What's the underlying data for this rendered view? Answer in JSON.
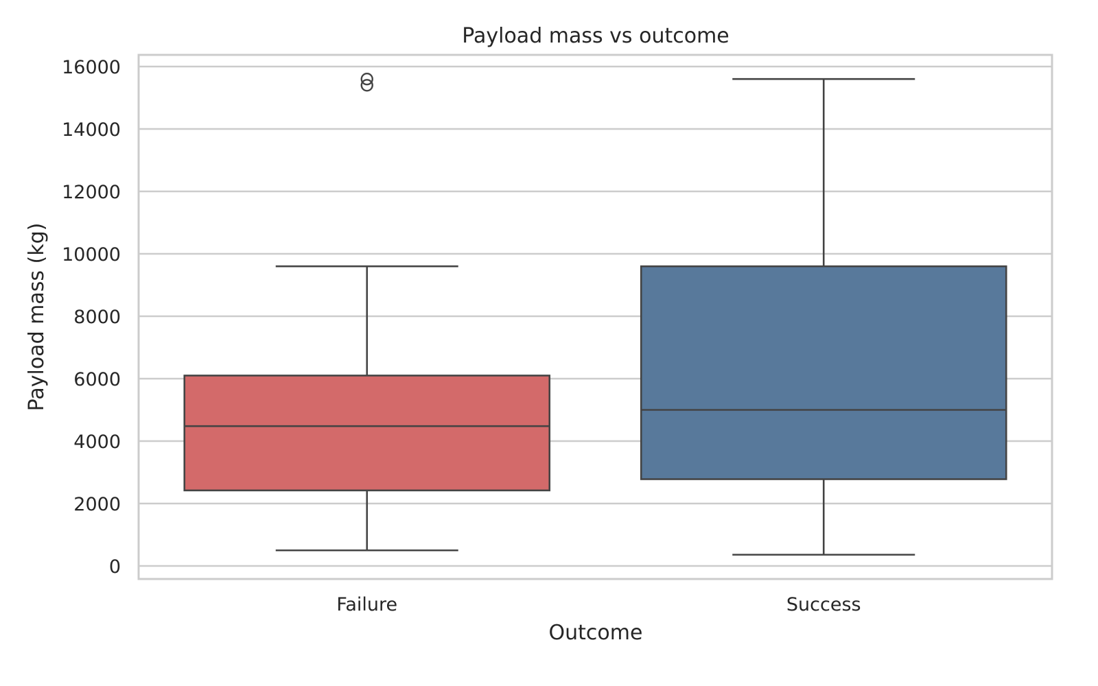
{
  "chart_data": {
    "type": "box",
    "title": "Payload mass vs outcome",
    "xlabel": "Outcome",
    "ylabel": "Payload mass (kg)",
    "categories": [
      "Failure",
      "Success"
    ],
    "ylim": [
      -450,
      16400
    ],
    "yticks": [
      0,
      2000,
      4000,
      6000,
      8000,
      10000,
      12000,
      14000,
      16000
    ],
    "grid": true,
    "boxes": [
      {
        "category": "Failure",
        "whisker_low": 500,
        "q1": 2420,
        "median": 4480,
        "q3": 6100,
        "whisker_high": 9600,
        "outliers": [
          15400,
          15600
        ],
        "color": "#d36a6a"
      },
      {
        "category": "Success",
        "whisker_low": 360,
        "q1": 2780,
        "median": 5000,
        "q3": 9600,
        "whisker_high": 15600,
        "outliers": [],
        "color": "#58799b"
      }
    ]
  }
}
